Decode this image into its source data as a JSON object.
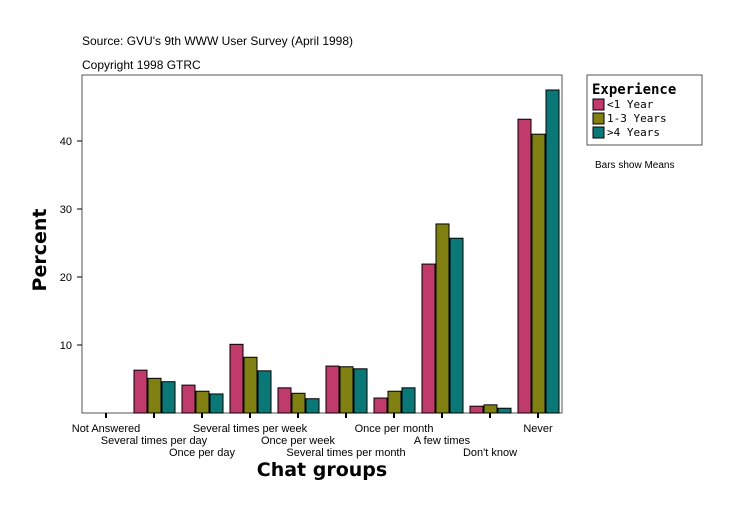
{
  "chart_data": {
    "type": "bar",
    "source": "Source: GVU's 9th WWW User Survey (April 1998)",
    "copyright": "Copyright 1998 GTRC",
    "xlabel": "Chat groups",
    "ylabel": "Percent",
    "ylim": [
      0,
      50
    ],
    "yticks": [
      10,
      20,
      30,
      40
    ],
    "note": "Bars show Means",
    "legend": {
      "title": "Experience",
      "placement": "right"
    },
    "categories": [
      "Not Answered",
      "Several times per day",
      "Once per day",
      "Several times per week",
      "Once per week",
      "Several times per month",
      "Once per month",
      "A few times",
      "Don't know",
      "Never"
    ],
    "series": [
      {
        "name": "<1 Year",
        "color": "#c03a6a",
        "values": [
          0,
          6.3,
          4.1,
          10.1,
          3.7,
          6.9,
          2.2,
          21.9,
          1.0,
          43.2
        ]
      },
      {
        "name": "1-3 Years",
        "color": "#7f7f12",
        "values": [
          0,
          5.1,
          3.2,
          8.2,
          2.9,
          6.8,
          3.2,
          27.8,
          1.2,
          41.0
        ]
      },
      {
        "name": ">4 Years",
        "color": "#0b7878",
        "values": [
          0,
          4.6,
          2.8,
          6.2,
          2.1,
          6.5,
          3.7,
          25.7,
          0.7,
          47.5
        ]
      }
    ]
  }
}
